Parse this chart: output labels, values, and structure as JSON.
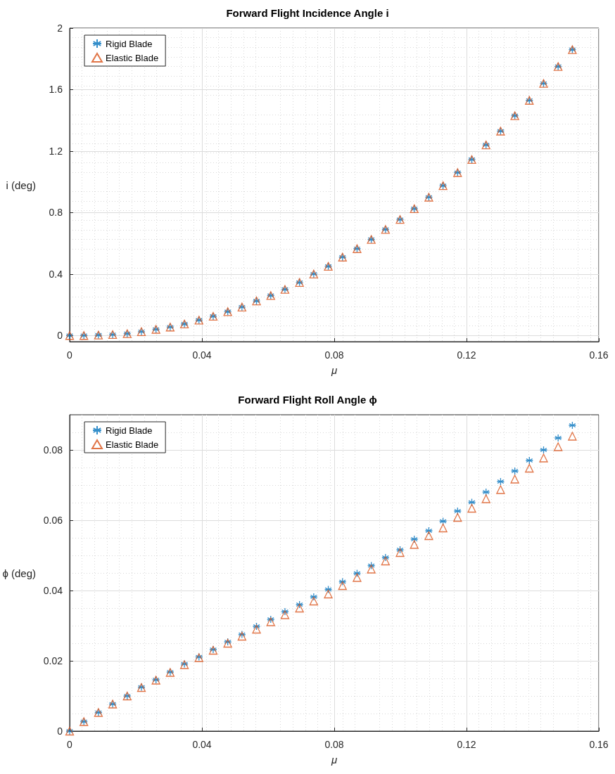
{
  "chart_data": [
    {
      "type": "scatter",
      "title": "Forward Flight Incidence Angle i",
      "xlabel": "μ",
      "ylabel": "i (deg)",
      "x": [
        0,
        0.0043,
        0.0087,
        0.013,
        0.0174,
        0.0217,
        0.0261,
        0.0304,
        0.0347,
        0.0391,
        0.0434,
        0.0478,
        0.0521,
        0.0565,
        0.0608,
        0.0651,
        0.0695,
        0.0738,
        0.0782,
        0.0825,
        0.0869,
        0.0912,
        0.0955,
        0.0999,
        0.1042,
        0.1086,
        0.1129,
        0.1173,
        0.1216,
        0.1259,
        0.1303,
        0.1346,
        0.139,
        0.1433,
        0.1477,
        0.152
      ],
      "series": [
        {
          "name": "Rigid Blade",
          "color": "#0072bd",
          "marker": "cross",
          "values": [
            0,
            0,
            0.003,
            0.006,
            0.012,
            0.025,
            0.04,
            0.055,
            0.075,
            0.1,
            0.125,
            0.155,
            0.185,
            0.225,
            0.26,
            0.3,
            0.345,
            0.4,
            0.45,
            0.51,
            0.565,
            0.625,
            0.69,
            0.755,
            0.825,
            0.9,
            0.975,
            1.06,
            1.145,
            1.24,
            1.33,
            1.43,
            1.53,
            1.64,
            1.75,
            1.86
          ]
        },
        {
          "name": "Elastic Blade",
          "color": "#d95319",
          "marker": "triangle",
          "values": [
            0,
            0,
            0.003,
            0.006,
            0.012,
            0.025,
            0.04,
            0.055,
            0.075,
            0.1,
            0.125,
            0.155,
            0.185,
            0.225,
            0.26,
            0.3,
            0.345,
            0.4,
            0.45,
            0.51,
            0.565,
            0.625,
            0.69,
            0.755,
            0.825,
            0.9,
            0.975,
            1.06,
            1.145,
            1.24,
            1.33,
            1.43,
            1.53,
            1.64,
            1.75,
            1.86
          ]
        }
      ],
      "xlim": [
        0,
        0.16
      ],
      "xticks": [
        0,
        0.04,
        0.08,
        0.12,
        0.16
      ],
      "ylim": [
        -0.04,
        2
      ],
      "yticks": [
        0,
        0.4,
        0.8,
        1.2,
        1.6,
        2
      ],
      "grid": true,
      "legend": "top left"
    },
    {
      "type": "scatter",
      "title": "Forward Flight Roll Angle ϕ",
      "xlabel": "μ",
      "ylabel": "ϕ (deg)",
      "x": [
        0,
        0.0043,
        0.0087,
        0.013,
        0.0174,
        0.0217,
        0.0261,
        0.0304,
        0.0347,
        0.0391,
        0.0434,
        0.0478,
        0.0521,
        0.0565,
        0.0608,
        0.0651,
        0.0695,
        0.0738,
        0.0782,
        0.0825,
        0.0869,
        0.0912,
        0.0955,
        0.0999,
        0.1042,
        0.1086,
        0.1129,
        0.1173,
        0.1216,
        0.1259,
        0.1303,
        0.1346,
        0.139,
        0.1433,
        0.1477,
        0.152
      ],
      "series": [
        {
          "name": "Rigid Blade",
          "color": "#0072bd",
          "marker": "cross",
          "values": [
            0,
            0.0027,
            0.0053,
            0.0077,
            0.01,
            0.0125,
            0.0146,
            0.0168,
            0.0191,
            0.0211,
            0.0232,
            0.0254,
            0.0275,
            0.0298,
            0.0318,
            0.034,
            0.036,
            0.0382,
            0.0403,
            0.0425,
            0.0449,
            0.0471,
            0.0494,
            0.0516,
            0.0546,
            0.057,
            0.0597,
            0.0626,
            0.0651,
            0.068,
            0.071,
            0.074,
            0.077,
            0.08,
            0.0834,
            0.087
          ]
        },
        {
          "name": "Elastic Blade",
          "color": "#d95319",
          "marker": "triangle",
          "values": [
            0,
            0.0027,
            0.0053,
            0.0077,
            0.01,
            0.0124,
            0.0145,
            0.0167,
            0.0189,
            0.0209,
            0.023,
            0.025,
            0.027,
            0.029,
            0.0311,
            0.0331,
            0.035,
            0.037,
            0.039,
            0.0414,
            0.0437,
            0.0461,
            0.0484,
            0.0508,
            0.0531,
            0.0556,
            0.0578,
            0.0608,
            0.0634,
            0.0661,
            0.0687,
            0.0717,
            0.0748,
            0.0777,
            0.0809,
            0.0839
          ]
        }
      ],
      "xlim": [
        0,
        0.16
      ],
      "xticks": [
        0,
        0.04,
        0.08,
        0.12,
        0.16
      ],
      "ylim": [
        0,
        0.09
      ],
      "yticks": [
        0,
        0.02,
        0.04,
        0.06,
        0.08
      ],
      "grid": true,
      "legend": "top left"
    }
  ]
}
